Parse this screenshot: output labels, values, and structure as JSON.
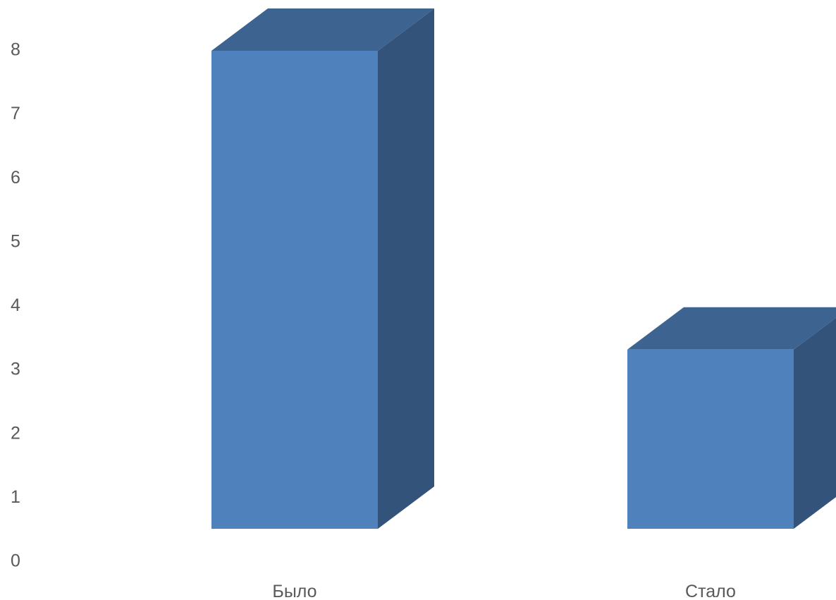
{
  "chart_data": {
    "type": "bar",
    "style": "3d-column",
    "categories": [
      "Было",
      "Стало"
    ],
    "values": [
      8,
      3
    ],
    "title": "",
    "xlabel": "",
    "ylabel": "",
    "ylim": [
      0,
      8
    ],
    "yticks": [
      "0",
      "1",
      "2",
      "3",
      "4",
      "5",
      "6",
      "7",
      "8"
    ],
    "grid": false,
    "legend": "none",
    "colors": {
      "front": "#4f81bd",
      "top": "#3d6490",
      "side": "#33537b",
      "labels": "#595959"
    }
  }
}
